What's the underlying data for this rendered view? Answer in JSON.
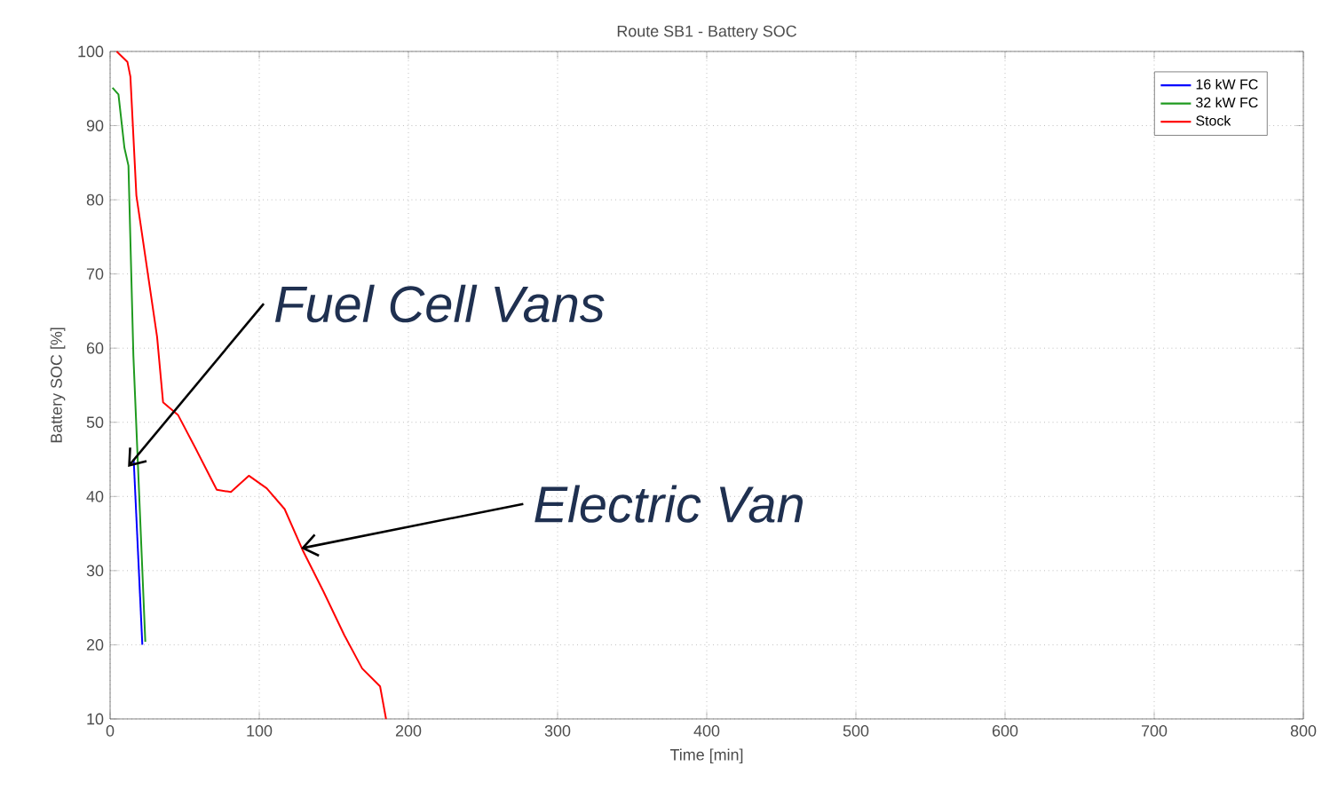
{
  "chart_data": {
    "type": "line",
    "title": "Route SB1 - Battery SOC",
    "xlabel": "Time [min]",
    "ylabel": "Battery SOC [%]",
    "xlim": [
      0,
      800
    ],
    "ylim": [
      10,
      100
    ],
    "xticks": [
      0,
      100,
      200,
      300,
      400,
      500,
      600,
      700,
      800
    ],
    "yticks": [
      10,
      20,
      30,
      40,
      50,
      60,
      70,
      80,
      90,
      100
    ],
    "grid": true,
    "legend": "top right",
    "line_style": "solid",
    "marker": "none",
    "annotations": [
      {
        "text": "Fuel Cell Vans",
        "x": 12,
        "y": 44
      },
      {
        "text": "Electric Van",
        "x": 128,
        "y": 33
      }
    ],
    "series": [
      {
        "name": "16 kW FC",
        "color": "#0000ff",
        "x": [
          15.8,
          21.6
        ],
        "values": [
          45,
          20
        ]
      },
      {
        "name": "32 kW FC",
        "color": "#1f9a1f",
        "x": [
          1.6,
          5.6,
          9.6,
          12.3,
          15.6,
          23.6
        ],
        "values": [
          95.1,
          94.2,
          87,
          84.6,
          59,
          20.4
        ]
      },
      {
        "name": "Stock",
        "color": "#ff0000",
        "x": [
          4.4,
          11.6,
          13.6,
          17.6,
          31.5,
          35.5,
          45.5,
          57.5,
          71.5,
          81,
          93,
          105,
          117,
          129,
          143,
          157,
          169,
          181,
          185
        ],
        "values": [
          100,
          98.6,
          96.6,
          80.6,
          61.5,
          52.7,
          51,
          46.4,
          40.9,
          40.6,
          42.8,
          41.1,
          38.3,
          32.8,
          27.2,
          21.3,
          16.8,
          14.4,
          10
        ]
      }
    ]
  }
}
